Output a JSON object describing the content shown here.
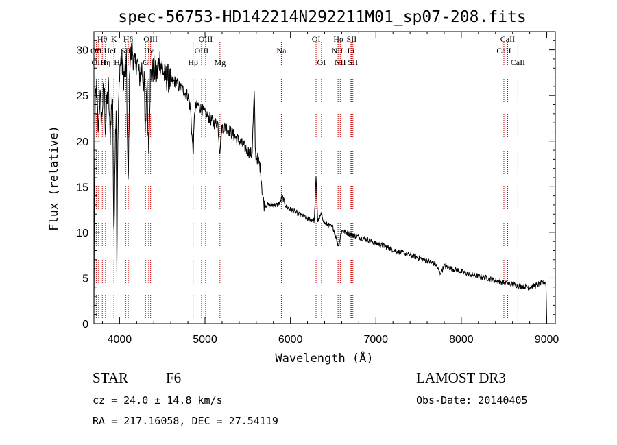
{
  "chart_data": {
    "type": "line",
    "title": "spec-56753-HD142214N292211M01_sp07-208.fits",
    "xlabel": "Wavelength (Å)",
    "ylabel": "Flux (relative)",
    "xlim": [
      3700,
      9100
    ],
    "ylim": [
      0,
      32
    ],
    "xticks": [
      4000,
      5000,
      6000,
      7000,
      8000,
      9000
    ],
    "yticks": [
      0,
      5,
      10,
      15,
      20,
      25,
      30
    ],
    "spectrum_anchors": [
      [
        3700,
        0.5
      ],
      [
        3705,
        12
      ],
      [
        3715,
        24
      ],
      [
        3730,
        26
      ],
      [
        3750,
        21
      ],
      [
        3770,
        25
      ],
      [
        3790,
        22
      ],
      [
        3800,
        24
      ],
      [
        3820,
        26
      ],
      [
        3835,
        21
      ],
      [
        3850,
        24
      ],
      [
        3870,
        26
      ],
      [
        3889,
        20
      ],
      [
        3900,
        23
      ],
      [
        3920,
        25
      ],
      [
        3933,
        8
      ],
      [
        3945,
        18
      ],
      [
        3960,
        24
      ],
      [
        3968,
        6
      ],
      [
        3980,
        20
      ],
      [
        4000,
        28
      ],
      [
        4020,
        29
      ],
      [
        4050,
        27
      ],
      [
        4080,
        28
      ],
      [
        4101,
        14
      ],
      [
        4120,
        29
      ],
      [
        4150,
        30
      ],
      [
        4180,
        28
      ],
      [
        4200,
        29
      ],
      [
        4230,
        27
      ],
      [
        4260,
        28
      ],
      [
        4290,
        26
      ],
      [
        4300,
        20
      ],
      [
        4320,
        27
      ],
      [
        4340,
        19
      ],
      [
        4360,
        27
      ],
      [
        4400,
        28
      ],
      [
        4430,
        27
      ],
      [
        4470,
        29
      ],
      [
        4500,
        28
      ],
      [
        4530,
        27
      ],
      [
        4560,
        27
      ],
      [
        4600,
        26.5
      ],
      [
        4650,
        26.5
      ],
      [
        4700,
        26
      ],
      [
        4750,
        25.5
      ],
      [
        4800,
        25
      ],
      [
        4830,
        23.5
      ],
      [
        4861,
        18.5
      ],
      [
        4880,
        23.5
      ],
      [
        4920,
        24
      ],
      [
        4960,
        23.5
      ],
      [
        5000,
        23
      ],
      [
        5050,
        22.5
      ],
      [
        5100,
        22
      ],
      [
        5150,
        22
      ],
      [
        5172,
        19
      ],
      [
        5200,
        21.5
      ],
      [
        5250,
        21.5
      ],
      [
        5300,
        21
      ],
      [
        5350,
        20.5
      ],
      [
        5400,
        20
      ],
      [
        5450,
        19.5
      ],
      [
        5500,
        19
      ],
      [
        5550,
        18.5
      ],
      [
        5577,
        25.5
      ],
      [
        5590,
        18.5
      ],
      [
        5620,
        18
      ],
      [
        5650,
        17
      ],
      [
        5670,
        14.5
      ],
      [
        5690,
        13
      ],
      [
        5750,
        13
      ],
      [
        5800,
        13
      ],
      [
        5850,
        13
      ],
      [
        5890,
        13.5
      ],
      [
        5900,
        14
      ],
      [
        5950,
        12.8
      ],
      [
        6000,
        12.5
      ],
      [
        6100,
        12
      ],
      [
        6200,
        11.5
      ],
      [
        6280,
        11.3
      ],
      [
        6300,
        16
      ],
      [
        6320,
        11.2
      ],
      [
        6363,
        12
      ],
      [
        6400,
        11
      ],
      [
        6500,
        10.5
      ],
      [
        6563,
        8.5
      ],
      [
        6600,
        10.2
      ],
      [
        6700,
        9.8
      ],
      [
        6800,
        9.5
      ],
      [
        6900,
        9.2
      ],
      [
        7000,
        8.8
      ],
      [
        7100,
        8.5
      ],
      [
        7200,
        8.1
      ],
      [
        7300,
        7.8
      ],
      [
        7400,
        7.5
      ],
      [
        7500,
        7.2
      ],
      [
        7600,
        6.9
      ],
      [
        7700,
        6.5
      ],
      [
        7750,
        5.5
      ],
      [
        7800,
        6.3
      ],
      [
        7900,
        6
      ],
      [
        8000,
        5.7
      ],
      [
        8100,
        5.4
      ],
      [
        8200,
        5.2
      ],
      [
        8300,
        5
      ],
      [
        8400,
        4.7
      ],
      [
        8500,
        4.5
      ],
      [
        8600,
        4.3
      ],
      [
        8700,
        4.1
      ],
      [
        8800,
        4
      ],
      [
        8900,
        4.3
      ],
      [
        8990,
        4.6
      ],
      [
        9000,
        0.5
      ]
    ],
    "spectral_lines": [
      {
        "label": "Hθ",
        "wavelength": 3798,
        "row": 1
      },
      {
        "label": "OII",
        "wavelength": 3727,
        "row": 2
      },
      {
        "label": "OIII",
        "wavelength": 3755,
        "row": 3
      },
      {
        "label": "Hη",
        "wavelength": 3835,
        "row": 3
      },
      {
        "label": "HeI",
        "wavelength": 3889,
        "row": 2
      },
      {
        "label": "K",
        "wavelength": 3934,
        "row": 1
      },
      {
        "label": "H",
        "wavelength": 3969,
        "row": 3
      },
      {
        "label": "SII",
        "wavelength": 4072,
        "row": 2
      },
      {
        "label": "Hδ",
        "wavelength": 4102,
        "row": 1
      },
      {
        "label": "OIII",
        "wavelength": 4363,
        "row": 1
      },
      {
        "label": "Hγ",
        "wavelength": 4341,
        "row": 2
      },
      {
        "label": "G",
        "wavelength": 4304,
        "row": 3
      },
      {
        "label": "OIII",
        "wavelength": 5007,
        "row": 1
      },
      {
        "label": "OIII",
        "wavelength": 4959,
        "row": 2
      },
      {
        "label": "Hβ",
        "wavelength": 4861,
        "row": 3
      },
      {
        "label": "Mg",
        "wavelength": 5175,
        "row": 3
      },
      {
        "label": "Na",
        "wavelength": 5894,
        "row": 2
      },
      {
        "label": "OI",
        "wavelength": 6300,
        "row": 1
      },
      {
        "label": "OI",
        "wavelength": 6363,
        "row": 3
      },
      {
        "label": "Hα",
        "wavelength": 6563,
        "row": 1
      },
      {
        "label": "NII",
        "wavelength": 6548,
        "row": 2
      },
      {
        "label": "NII",
        "wavelength": 6583,
        "row": 3
      },
      {
        "label": "SII",
        "wavelength": 6716,
        "row": 1
      },
      {
        "label": "Li",
        "wavelength": 6708,
        "row": 2
      },
      {
        "label": "SII",
        "wavelength": 6731,
        "row": 3
      },
      {
        "label": "CaII",
        "wavelength": 8542,
        "row": 1
      },
      {
        "label": "CaII",
        "wavelength": 8498,
        "row": 2
      },
      {
        "label": "CaII",
        "wavelength": 8662,
        "row": 3
      }
    ],
    "line_color": "#000000",
    "marker_color": "#cc0000"
  },
  "info": {
    "object_type": "STAR",
    "subclass": "F6",
    "survey": "LAMOST DR3",
    "redshift": "cz = 24.0 ± 14.8 km/s",
    "obs_date": "Obs-Date: 20140405",
    "coordinates": "RA = 217.16058, DEC =  27.54119"
  }
}
